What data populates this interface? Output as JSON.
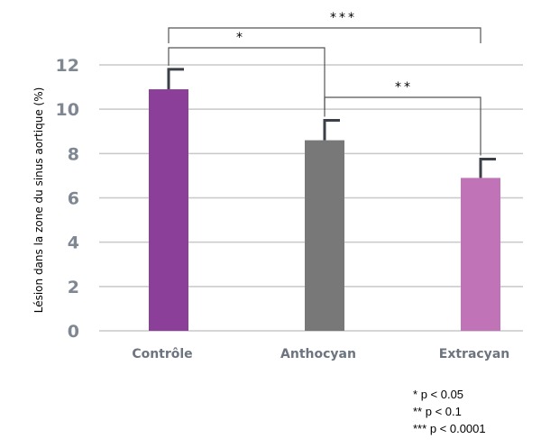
{
  "chart_data": {
    "type": "bar",
    "categories": [
      "Contrôle",
      "Anthocyan",
      "Extracyan"
    ],
    "values": [
      10.9,
      8.6,
      6.9
    ],
    "errors": [
      0.9,
      0.9,
      0.85
    ],
    "colors": [
      "#8b3f98",
      "#787878",
      "#c073b6"
    ],
    "ylabel": "Lésion dans la zone du sinus aortique (%)",
    "ylim": [
      0,
      12
    ],
    "yticks": [
      0,
      2,
      4,
      6,
      8,
      10,
      12
    ],
    "grid": true,
    "significance": [
      {
        "from": 0,
        "to": 1,
        "label": "*"
      },
      {
        "from": 1,
        "to": 2,
        "label": "**"
      },
      {
        "from": 0,
        "to": 2,
        "label": "***"
      }
    ]
  },
  "legend": [
    {
      "stars": "*",
      "text": "p < 0.05"
    },
    {
      "stars": "**",
      "text": "p < 0.1"
    },
    {
      "stars": "***",
      "text": "p < 0.0001"
    }
  ]
}
